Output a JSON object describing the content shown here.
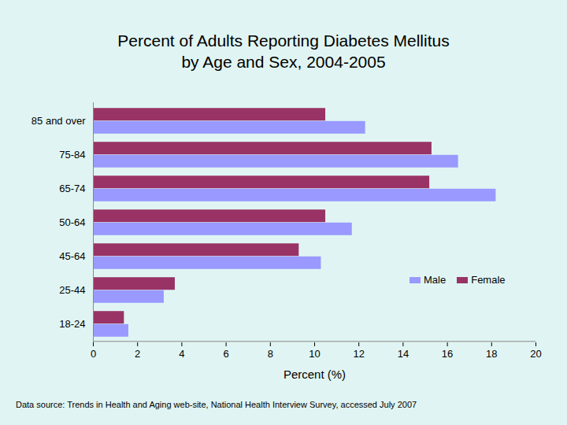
{
  "chart_data": {
    "type": "bar",
    "orientation": "horizontal",
    "title": "Percent of Adults Reporting Diabetes Mellitus\nby Age and Sex, 2004-2005",
    "x_label": "Percent (%)",
    "caption": "Data source: Trends in Health and Aging web-site, National Health Interview Survey, accessed July 2007",
    "categories": [
      "85 and over",
      "75-84",
      "65-74",
      "50-64",
      "45-64",
      "25-44",
      "18-24"
    ],
    "series": [
      {
        "name": "Male",
        "color": "#9999ff",
        "values": [
          12.3,
          16.5,
          18.2,
          11.7,
          10.3,
          3.2,
          1.6
        ]
      },
      {
        "name": "Female",
        "color": "#993366",
        "values": [
          10.5,
          15.3,
          15.2,
          10.5,
          9.3,
          3.7,
          1.4
        ]
      }
    ],
    "xlim": [
      0,
      20
    ],
    "xticks": [
      0,
      2,
      4,
      6,
      8,
      10,
      12,
      14,
      16,
      18,
      20
    ],
    "legend": "right",
    "grid": false
  }
}
